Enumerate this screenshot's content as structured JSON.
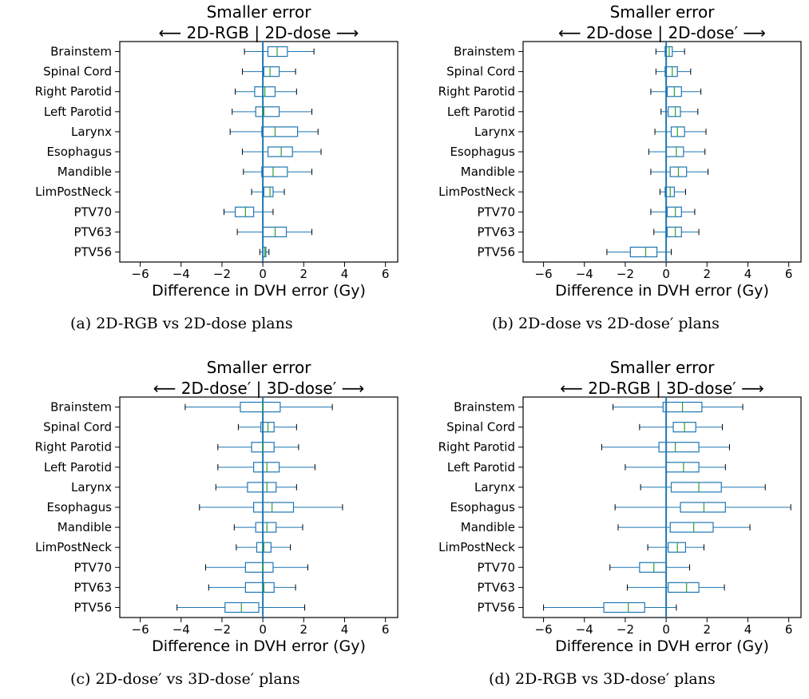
{
  "figure": {
    "captions": [
      "(a)  2D-RGB vs 2D-dose plans",
      "(b)  2D-dose vs 2D-dose′ plans",
      "(c)  2D-dose′ vs 3D-dose′ plans",
      "(d)  2D-RGB vs 3D-dose′ plans"
    ]
  },
  "colors": {
    "box": "#1f77b4",
    "median": "#2ca02c",
    "zero_line": "#1f77b4",
    "axis": "#000000"
  },
  "chart_data": [
    {
      "type": "boxplot",
      "orientation": "horizontal",
      "title": "Smaller error",
      "subtitle": "⟵  2D-RGB | 2D-dose  ⟶",
      "xlabel": "Difference in DVH error (Gy)",
      "xlim": [
        -7,
        6.6
      ],
      "xticks": [
        -6,
        -4,
        -2,
        0,
        2,
        4,
        6
      ],
      "xtick_labels": [
        "−6",
        "−4",
        "−2",
        "0",
        "2",
        "4",
        "6"
      ],
      "vline_x": 0,
      "categories": [
        "Brainstem",
        "Spinal Cord",
        "Right Parotid",
        "Left Parotid",
        "Larynx",
        "Esophagus",
        "Mandible",
        "LimPostNeck",
        "PTV70",
        "PTV63",
        "PTV56"
      ],
      "boxes": [
        {
          "whislo": -0.9,
          "q1": 0.25,
          "med": 0.7,
          "q3": 1.2,
          "whishi": 2.5
        },
        {
          "whislo": -1.0,
          "q1": 0.05,
          "med": 0.35,
          "q3": 0.8,
          "whishi": 1.6
        },
        {
          "whislo": -1.35,
          "q1": -0.4,
          "med": 0.1,
          "q3": 0.6,
          "whishi": 1.65
        },
        {
          "whislo": -1.5,
          "q1": -0.35,
          "med": 0.05,
          "q3": 0.8,
          "whishi": 2.4
        },
        {
          "whislo": -1.6,
          "q1": -0.05,
          "med": 0.6,
          "q3": 1.7,
          "whishi": 2.7
        },
        {
          "whislo": -1.0,
          "q1": 0.25,
          "med": 0.9,
          "q3": 1.45,
          "whishi": 2.85
        },
        {
          "whislo": -0.95,
          "q1": -0.05,
          "med": 0.5,
          "q3": 1.2,
          "whishi": 2.4
        },
        {
          "whislo": -0.55,
          "q1": 0.05,
          "med": 0.35,
          "q3": 0.5,
          "whishi": 1.05
        },
        {
          "whislo": -1.9,
          "q1": -1.35,
          "med": -0.85,
          "q3": -0.45,
          "whishi": 0.5
        },
        {
          "whislo": -1.25,
          "q1": 0.0,
          "med": 0.6,
          "q3": 1.15,
          "whishi": 2.4
        },
        {
          "whislo": -0.15,
          "q1": 0.0,
          "med": 0.1,
          "q3": 0.15,
          "whishi": 0.3
        }
      ]
    },
    {
      "type": "boxplot",
      "orientation": "horizontal",
      "title": "Smaller error",
      "subtitle": "⟵  2D-dose | 2D-dose′  ⟶",
      "xlabel": "Difference in DVH error (Gy)",
      "xlim": [
        -7,
        6.6
      ],
      "xticks": [
        -6,
        -4,
        -2,
        0,
        2,
        4,
        6
      ],
      "xtick_labels": [
        "−6",
        "−4",
        "−2",
        "0",
        "2",
        "4",
        "6"
      ],
      "vline_x": 0,
      "categories": [
        "Brainstem",
        "Spinal Cord",
        "Right Parotid",
        "Left Parotid",
        "Larynx",
        "Esophagus",
        "Mandible",
        "LimPostNeck",
        "PTV70",
        "PTV63",
        "PTV56"
      ],
      "boxes": [
        {
          "whislo": -0.5,
          "q1": -0.05,
          "med": 0.15,
          "q3": 0.3,
          "whishi": 0.9
        },
        {
          "whislo": -0.5,
          "q1": -0.05,
          "med": 0.3,
          "q3": 0.55,
          "whishi": 1.2
        },
        {
          "whislo": -0.75,
          "q1": 0.05,
          "med": 0.4,
          "q3": 0.75,
          "whishi": 1.7
        },
        {
          "whislo": -0.25,
          "q1": 0.1,
          "med": 0.45,
          "q3": 0.7,
          "whishi": 1.55
        },
        {
          "whislo": -0.55,
          "q1": 0.25,
          "med": 0.55,
          "q3": 0.9,
          "whishi": 1.95
        },
        {
          "whislo": -0.85,
          "q1": 0.0,
          "med": 0.5,
          "q3": 0.85,
          "whishi": 1.9
        },
        {
          "whislo": -0.75,
          "q1": 0.2,
          "med": 0.6,
          "q3": 1.0,
          "whishi": 2.05
        },
        {
          "whislo": -0.3,
          "q1": -0.05,
          "med": 0.2,
          "q3": 0.4,
          "whishi": 0.95
        },
        {
          "whislo": -0.75,
          "q1": 0.05,
          "med": 0.45,
          "q3": 0.75,
          "whishi": 1.4
        },
        {
          "whislo": -0.6,
          "q1": 0.05,
          "med": 0.45,
          "q3": 0.75,
          "whishi": 1.6
        },
        {
          "whislo": -2.9,
          "q1": -1.75,
          "med": -1.0,
          "q3": -0.45,
          "whishi": 0.25
        }
      ]
    },
    {
      "type": "boxplot",
      "orientation": "horizontal",
      "title": "Smaller error",
      "subtitle": "⟵  2D-dose′ | 3D-dose′  ⟶",
      "xlabel": "Difference in DVH error (Gy)",
      "xlim": [
        -7,
        6.6
      ],
      "xticks": [
        -6,
        -4,
        -2,
        0,
        2,
        4,
        6
      ],
      "xtick_labels": [
        "−6",
        "−4",
        "−2",
        "0",
        "2",
        "4",
        "6"
      ],
      "vline_x": 0,
      "categories": [
        "Brainstem",
        "Spinal Cord",
        "Right Parotid",
        "Left Parotid",
        "Larynx",
        "Esophagus",
        "Mandible",
        "LimPostNeck",
        "PTV70",
        "PTV63",
        "PTV56"
      ],
      "boxes": [
        {
          "whislo": -3.8,
          "q1": -1.1,
          "med": 0.0,
          "q3": 0.85,
          "whishi": 3.4
        },
        {
          "whislo": -1.2,
          "q1": -0.1,
          "med": 0.25,
          "q3": 0.55,
          "whishi": 1.65
        },
        {
          "whislo": -2.2,
          "q1": -0.55,
          "med": 0.0,
          "q3": 0.55,
          "whishi": 1.75
        },
        {
          "whislo": -2.2,
          "q1": -0.45,
          "med": 0.2,
          "q3": 0.8,
          "whishi": 2.55
        },
        {
          "whislo": -2.3,
          "q1": -0.75,
          "med": 0.2,
          "q3": 0.65,
          "whishi": 1.65
        },
        {
          "whislo": -3.1,
          "q1": -0.45,
          "med": 0.45,
          "q3": 1.5,
          "whishi": 3.9
        },
        {
          "whislo": -1.4,
          "q1": -0.35,
          "med": 0.2,
          "q3": 0.65,
          "whishi": 1.95
        },
        {
          "whislo": -1.3,
          "q1": -0.3,
          "med": 0.05,
          "q3": 0.4,
          "whishi": 1.35
        },
        {
          "whislo": -2.8,
          "q1": -0.85,
          "med": 0.0,
          "q3": 0.5,
          "whishi": 2.2
        },
        {
          "whislo": -2.65,
          "q1": -0.85,
          "med": 0.05,
          "q3": 0.55,
          "whishi": 1.6
        },
        {
          "whislo": -4.2,
          "q1": -1.85,
          "med": -1.05,
          "q3": -0.2,
          "whishi": 2.05
        }
      ]
    },
    {
      "type": "boxplot",
      "orientation": "horizontal",
      "title": "Smaller error",
      "subtitle": "⟵  2D-RGB | 3D-dose′  ⟶",
      "xlabel": "Difference in DVH error (Gy)",
      "xlim": [
        -7,
        6.6
      ],
      "xticks": [
        -6,
        -4,
        -2,
        0,
        2,
        4,
        6
      ],
      "xtick_labels": [
        "−6",
        "−4",
        "−2",
        "0",
        "2",
        "4",
        "6"
      ],
      "vline_x": 0,
      "categories": [
        "Brainstem",
        "Spinal Cord",
        "Right Parotid",
        "Left Parotid",
        "Larynx",
        "Esophagus",
        "Mandible",
        "LimPostNeck",
        "PTV70",
        "PTV63",
        "PTV56"
      ],
      "boxes": [
        {
          "whislo": -2.6,
          "q1": -0.15,
          "med": 0.8,
          "q3": 1.75,
          "whishi": 3.75
        },
        {
          "whislo": -1.3,
          "q1": 0.35,
          "med": 0.9,
          "q3": 1.45,
          "whishi": 2.75
        },
        {
          "whislo": -3.15,
          "q1": -0.35,
          "med": 0.45,
          "q3": 1.6,
          "whishi": 3.1
        },
        {
          "whislo": -2.0,
          "q1": 0.0,
          "med": 0.85,
          "q3": 1.6,
          "whishi": 2.9
        },
        {
          "whislo": -1.25,
          "q1": 0.25,
          "med": 1.6,
          "q3": 2.7,
          "whishi": 4.85
        },
        {
          "whislo": -2.5,
          "q1": 0.7,
          "med": 1.85,
          "q3": 2.9,
          "whishi": 6.1
        },
        {
          "whislo": -2.35,
          "q1": 0.2,
          "med": 1.35,
          "q3": 2.3,
          "whishi": 4.1
        },
        {
          "whislo": -0.9,
          "q1": 0.1,
          "med": 0.55,
          "q3": 0.95,
          "whishi": 1.85
        },
        {
          "whislo": -2.75,
          "q1": -1.3,
          "med": -0.6,
          "q3": 0.0,
          "whishi": 1.15
        },
        {
          "whislo": -1.9,
          "q1": 0.1,
          "med": 1.0,
          "q3": 1.6,
          "whishi": 2.85
        },
        {
          "whislo": -6.0,
          "q1": -3.05,
          "med": -1.85,
          "q3": -1.05,
          "whishi": 0.5
        }
      ]
    }
  ]
}
